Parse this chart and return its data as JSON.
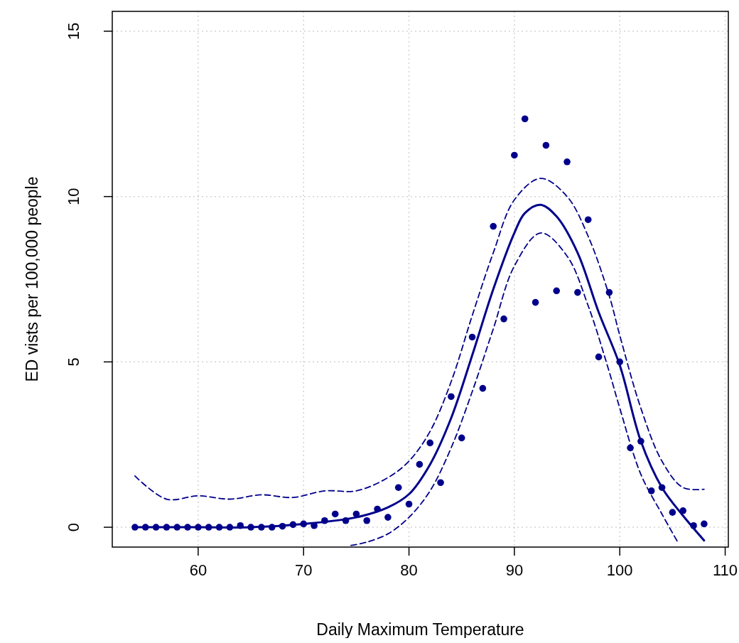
{
  "chart_data": {
    "type": "scatter",
    "xlabel": "Daily Maximum Temperature",
    "ylabel": "ED vists per 100,000 people",
    "xlim": [
      51.85,
      110.3
    ],
    "ylim": [
      -0.6,
      15.6
    ],
    "xticks": [
      60,
      70,
      80,
      90,
      100,
      110
    ],
    "yticks": [
      0,
      5,
      10,
      15
    ],
    "grid": true,
    "series": [
      {
        "color": "#00008b",
        "marker": "circle",
        "x": [
          54,
          55,
          56,
          57,
          58,
          59,
          60,
          61,
          62,
          63,
          64,
          65,
          66,
          67,
          68,
          69,
          70,
          71,
          72,
          73,
          74,
          75,
          76,
          77,
          78,
          79,
          80,
          81,
          82,
          83,
          84,
          85,
          86,
          87,
          88,
          89,
          90,
          91,
          92,
          93,
          94,
          95,
          96,
          97,
          98,
          99,
          100,
          101,
          102,
          103,
          104,
          105,
          106,
          107,
          108
        ],
        "values": [
          0,
          0,
          0,
          0,
          0,
          0,
          0,
          0,
          0,
          0,
          0.05,
          0,
          0,
          0,
          0.03,
          0.08,
          0.1,
          0.05,
          0.2,
          0.4,
          0.2,
          0.4,
          0.2,
          0.55,
          0.3,
          1.2,
          0.7,
          1.9,
          2.55,
          1.35,
          3.95,
          2.7,
          5.75,
          4.2,
          9.1,
          6.3,
          11.25,
          12.35,
          6.8,
          11.55,
          7.15,
          11.05,
          7.1,
          9.3,
          5.15,
          7.1,
          5.0,
          2.4,
          2.6,
          1.1,
          1.2,
          0.45,
          0.5,
          0.05,
          0.1
        ]
      },
      {
        "type": "line",
        "color": "#00008b",
        "line_style": "solid",
        "marker": "none",
        "x": [
          54,
          60,
          65,
          70,
          75,
          78,
          80,
          82,
          84,
          86,
          88,
          90,
          91,
          92.5,
          94,
          96,
          98,
          100,
          102,
          104,
          106,
          108
        ],
        "values": [
          0,
          0,
          0,
          0.1,
          0.3,
          0.6,
          1.0,
          1.9,
          3.3,
          5.2,
          7.2,
          8.9,
          9.5,
          9.75,
          9.4,
          8.3,
          6.5,
          4.9,
          2.6,
          1.2,
          0.35,
          -0.4
        ]
      },
      {
        "type": "line",
        "color": "#00008b",
        "line_style": "dashed",
        "marker": "none",
        "x": [
          54,
          57,
          60,
          63,
          66,
          69,
          72,
          75,
          78,
          80,
          82,
          84,
          86,
          88,
          90,
          92.5,
          95,
          97,
          99,
          100,
          102,
          104,
          106,
          108
        ],
        "values": [
          1.55,
          0.85,
          0.95,
          0.85,
          0.98,
          0.9,
          1.1,
          1.1,
          1.5,
          2.0,
          2.9,
          4.4,
          6.4,
          8.3,
          9.9,
          10.55,
          10.0,
          8.8,
          7.0,
          5.8,
          3.6,
          2.0,
          1.2,
          1.15
        ]
      },
      {
        "type": "line",
        "color": "#00008b",
        "line_style": "dashed",
        "marker": "none",
        "x": [
          74.5,
          76,
          78,
          80,
          82,
          84,
          86,
          88,
          90,
          92.5,
          95,
          97,
          99,
          100,
          102,
          104,
          105.5
        ],
        "values": [
          -0.55,
          -0.45,
          -0.2,
          0.3,
          1.1,
          2.4,
          4.1,
          6.0,
          7.9,
          8.9,
          8.2,
          6.7,
          4.7,
          3.6,
          1.6,
          0.4,
          -0.45
        ]
      }
    ]
  }
}
